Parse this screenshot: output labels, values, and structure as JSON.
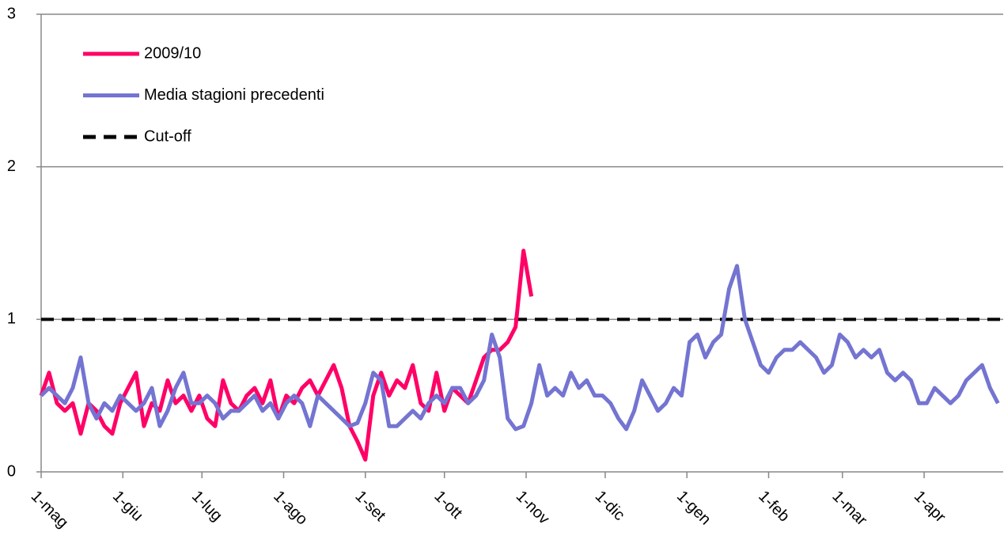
{
  "chart_data": {
    "type": "line",
    "x": [
      0,
      3,
      6,
      9,
      12,
      15,
      18,
      21,
      24,
      27,
      30,
      33,
      36,
      39,
      42,
      45,
      48,
      51,
      54,
      57,
      60,
      63,
      66,
      69,
      72,
      75,
      78,
      81,
      84,
      87,
      90,
      93,
      96,
      99,
      102,
      105,
      108,
      111,
      114,
      117,
      120,
      123,
      126,
      129,
      132,
      135,
      138,
      141,
      144,
      147,
      150,
      153,
      156,
      159,
      162,
      165,
      168,
      171,
      174,
      177,
      180,
      183,
      186,
      189,
      192,
      195,
      198,
      201,
      204,
      207,
      210,
      213,
      216,
      219,
      222,
      225,
      228,
      231,
      234,
      237,
      240,
      243,
      246,
      249,
      252,
      255,
      258,
      261,
      264,
      267,
      270,
      273,
      276,
      279,
      282,
      285,
      288,
      291,
      294,
      297,
      300,
      303,
      306,
      309,
      312,
      315,
      318,
      321,
      324,
      327,
      330,
      333,
      336,
      339,
      342,
      345,
      348,
      351,
      354,
      357,
      360,
      363
    ],
    "series": [
      {
        "name": "2009/10",
        "color": "#ff0066",
        "values": [
          0.5,
          0.65,
          0.45,
          0.4,
          0.45,
          0.25,
          0.45,
          0.4,
          0.3,
          0.25,
          0.45,
          0.55,
          0.65,
          0.3,
          0.45,
          0.4,
          0.6,
          0.45,
          0.5,
          0.4,
          0.5,
          0.35,
          0.3,
          0.6,
          0.45,
          0.4,
          0.5,
          0.55,
          0.45,
          0.6,
          0.35,
          0.5,
          0.45,
          0.55,
          0.6,
          0.5,
          0.6,
          0.7,
          0.55,
          0.3,
          0.2,
          0.08,
          0.5,
          0.65,
          0.5,
          0.6,
          0.55,
          0.7,
          0.45,
          0.4,
          0.65,
          0.4,
          0.55,
          0.5,
          0.45,
          0.6,
          0.75,
          0.8,
          0.8,
          0.85,
          0.95,
          1.45,
          1.15,
          null,
          null,
          null,
          null,
          null,
          null,
          null,
          null,
          null,
          null,
          null,
          null,
          null,
          null,
          null,
          null,
          null,
          null,
          null,
          null,
          null,
          null,
          null,
          null,
          null,
          null,
          null,
          null,
          null,
          null,
          null,
          null,
          null,
          null,
          null,
          null,
          null,
          null,
          null,
          null,
          null,
          null,
          null,
          null,
          null,
          null,
          null,
          null,
          null,
          null,
          null,
          null,
          null,
          null,
          null,
          null,
          null,
          null,
          null
        ]
      },
      {
        "name": "Media stagioni precedenti",
        "color": "#7474d2",
        "values": [
          0.5,
          0.55,
          0.5,
          0.45,
          0.55,
          0.75,
          0.45,
          0.35,
          0.45,
          0.4,
          0.5,
          0.45,
          0.4,
          0.45,
          0.55,
          0.3,
          0.4,
          0.55,
          0.65,
          0.45,
          0.45,
          0.5,
          0.45,
          0.35,
          0.4,
          0.4,
          0.45,
          0.5,
          0.4,
          0.45,
          0.35,
          0.45,
          0.5,
          0.45,
          0.3,
          0.5,
          0.45,
          0.4,
          0.35,
          0.3,
          0.32,
          0.45,
          0.65,
          0.6,
          0.3,
          0.3,
          0.35,
          0.4,
          0.35,
          0.45,
          0.5,
          0.45,
          0.55,
          0.55,
          0.45,
          0.5,
          0.6,
          0.9,
          0.75,
          0.35,
          0.28,
          0.3,
          0.45,
          0.7,
          0.5,
          0.55,
          0.5,
          0.65,
          0.55,
          0.6,
          0.5,
          0.5,
          0.45,
          0.35,
          0.28,
          0.4,
          0.6,
          0.5,
          0.4,
          0.45,
          0.55,
          0.5,
          0.85,
          0.9,
          0.75,
          0.85,
          0.9,
          1.2,
          1.35,
          1.0,
          0.85,
          0.7,
          0.65,
          0.75,
          0.8,
          0.8,
          0.85,
          0.8,
          0.75,
          0.65,
          0.7,
          0.9,
          0.85,
          0.75,
          0.8,
          0.75,
          0.8,
          0.65,
          0.6,
          0.65,
          0.6,
          0.45,
          0.45,
          0.55,
          0.5,
          0.45,
          0.5,
          0.6,
          0.65,
          0.7,
          0.55,
          0.45
        ]
      }
    ],
    "cutoff": {
      "name": "Cut-off",
      "value": 1,
      "color": "#000000"
    },
    "xlim": [
      0,
      365
    ],
    "xticks": [
      {
        "value": 0,
        "label": "1-mag"
      },
      {
        "value": 31,
        "label": "1-giu"
      },
      {
        "value": 61,
        "label": "1-lug"
      },
      {
        "value": 92,
        "label": "1-ago"
      },
      {
        "value": 123,
        "label": "1-set"
      },
      {
        "value": 153,
        "label": "1-ott"
      },
      {
        "value": 184,
        "label": "1-nov"
      },
      {
        "value": 214,
        "label": "1-dic"
      },
      {
        "value": 245,
        "label": "1-gen"
      },
      {
        "value": 276,
        "label": "1-feb"
      },
      {
        "value": 304,
        "label": "1-mar"
      },
      {
        "value": 335,
        "label": "1-apr"
      }
    ],
    "ylim": [
      0,
      3
    ],
    "yticks": [
      0,
      1,
      2,
      3
    ],
    "grid": true,
    "legend": "top-left"
  }
}
